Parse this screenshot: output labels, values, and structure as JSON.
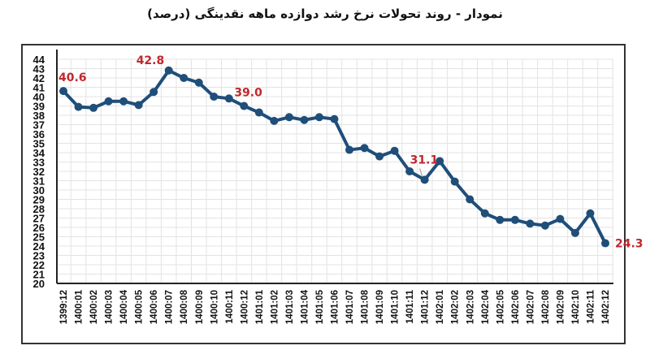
{
  "title": "نمودار - روند تحولات نرخ رشد دوازده ماهه نقدینگی (درصد)",
  "colors": {
    "line": "#1f4e79",
    "label": "#c0282d",
    "grid": "#e3e3e3",
    "axis": "#222222",
    "frame": "#333333"
  },
  "chart_data": {
    "type": "line",
    "title": "نمودار - روند تحولات نرخ رشد دوازده ماهه نقدینگی (درصد)",
    "xlabel": "",
    "ylabel": "",
    "ylim": [
      20,
      44
    ],
    "yticks": [
      20,
      21,
      22,
      23,
      24,
      25,
      26,
      27,
      28,
      29,
      30,
      31,
      32,
      33,
      34,
      35,
      36,
      37,
      38,
      39,
      40,
      41,
      42,
      43,
      44
    ],
    "grid": true,
    "legend": "none",
    "categories": [
      "1399:12",
      "1400:01",
      "1400:02",
      "1400:03",
      "1400:04",
      "1400:05",
      "1400:06",
      "1400:07",
      "1400:08",
      "1400:09",
      "1400:10",
      "1400:11",
      "1400:12",
      "1401:01",
      "1401:02",
      "1401:03",
      "1401:04",
      "1401:05",
      "1401:06",
      "1401:07",
      "1401:08",
      "1401:09",
      "1401:10",
      "1401:11",
      "1401:12",
      "1402:01",
      "1402:02",
      "1402:03",
      "1402:04",
      "1402:05",
      "1402:06",
      "1402:07",
      "1402:08",
      "1402:09",
      "1402:10",
      "1402:11",
      "1402:12"
    ],
    "series": [
      {
        "name": "نرخ رشد دوازده ماهه نقدینگی",
        "values": [
          40.6,
          38.9,
          38.8,
          39.5,
          39.5,
          39.1,
          40.5,
          42.8,
          42.0,
          41.5,
          40.0,
          39.8,
          39.0,
          38.3,
          37.4,
          37.8,
          37.5,
          37.8,
          37.6,
          34.3,
          34.5,
          33.6,
          34.2,
          32.0,
          31.1,
          33.1,
          30.9,
          29.0,
          27.5,
          26.8,
          26.8,
          26.4,
          26.2,
          26.9,
          25.4,
          27.5,
          24.3
        ]
      }
    ],
    "annotations": [
      {
        "category": "1399:12",
        "text": "40.6"
      },
      {
        "category": "1400:07",
        "text": "42.8"
      },
      {
        "category": "1400:12",
        "text": "39.0"
      },
      {
        "category": "1401:12",
        "text": "31.1"
      },
      {
        "category": "1402:12",
        "text": "24.3"
      }
    ]
  }
}
